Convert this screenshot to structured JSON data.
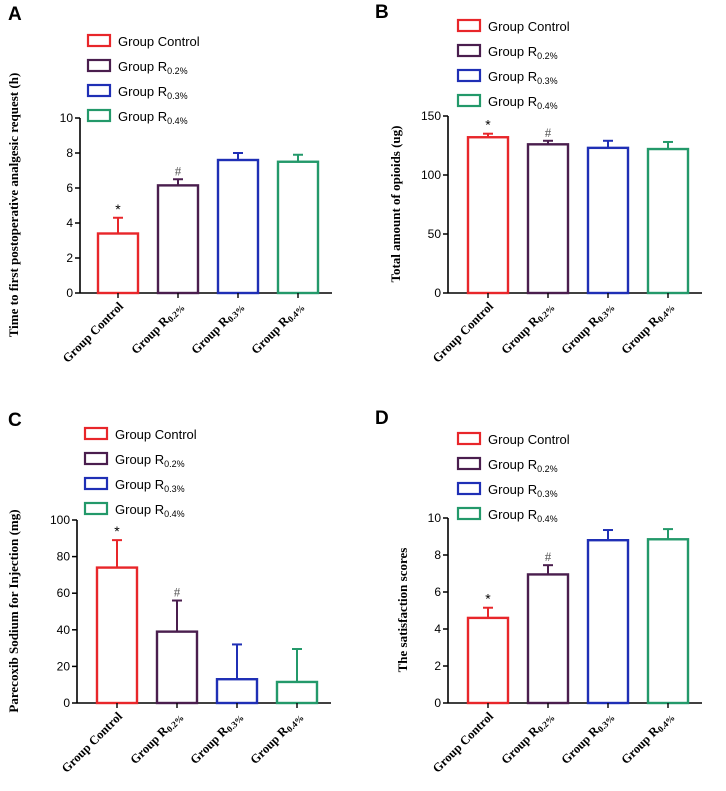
{
  "figure": {
    "series_colors": [
      "#e8262a",
      "#4a1e4e",
      "#1f2fb5",
      "#23996a"
    ],
    "legend_entries": [
      {
        "name": "Group Control",
        "base": "Group Control",
        "sub": ""
      },
      {
        "name": "Group R0.2%",
        "base": "Group R",
        "sub": "0.2%"
      },
      {
        "name": "Group R0.3%",
        "base": "Group R",
        "sub": "0.3%"
      },
      {
        "name": "Group R0.4%",
        "base": "Group R",
        "sub": "0.4%"
      }
    ]
  },
  "chart_data": [
    {
      "panel": "A",
      "type": "bar",
      "ylabel": "Time to first postoperative analgesic request (h)",
      "categories": [
        "Group Control",
        "Group R0.2%",
        "Group R0.3%",
        "Group R0.4%"
      ],
      "values": [
        3.4,
        6.15,
        7.6,
        7.5
      ],
      "errors": [
        0.9,
        0.35,
        0.4,
        0.4
      ],
      "annotations": [
        "*",
        "#",
        "",
        ""
      ],
      "ylim": [
        0,
        10
      ],
      "yticks": [
        0,
        2,
        4,
        6,
        8,
        10
      ]
    },
    {
      "panel": "B",
      "type": "bar",
      "ylabel": "Total amount of opioids (ug)",
      "categories": [
        "Group Control",
        "Group R0.2%",
        "Group R0.3%",
        "Group R0.4%"
      ],
      "values": [
        132,
        126,
        123,
        122
      ],
      "errors": [
        3,
        3,
        6,
        6
      ],
      "annotations": [
        "*",
        "#",
        "",
        ""
      ],
      "ylim": [
        0,
        150
      ],
      "yticks": [
        0,
        50,
        100,
        150
      ]
    },
    {
      "panel": "C",
      "type": "bar",
      "ylabel": "Parecoxib Sodium for Injection (mg)",
      "categories": [
        "Group Control",
        "Group R0.2%",
        "Group R0.3%",
        "Group R0.4%"
      ],
      "values": [
        74,
        39,
        13,
        11.5
      ],
      "errors": [
        15,
        17,
        19,
        18
      ],
      "annotations": [
        "*",
        "#",
        "",
        ""
      ],
      "ylim": [
        0,
        100
      ],
      "yticks": [
        0,
        20,
        40,
        60,
        80,
        100
      ]
    },
    {
      "panel": "D",
      "type": "bar",
      "ylabel": "The satisfaction scores",
      "categories": [
        "Group Control",
        "Group R0.2%",
        "Group R0.3%",
        "Group R0.4%"
      ],
      "values": [
        4.6,
        6.95,
        8.8,
        8.85
      ],
      "errors": [
        0.55,
        0.5,
        0.55,
        0.55
      ],
      "annotations": [
        "*",
        "#",
        "",
        ""
      ],
      "ylim": [
        0,
        10
      ],
      "yticks": [
        0,
        2,
        4,
        6,
        8,
        10
      ]
    }
  ]
}
